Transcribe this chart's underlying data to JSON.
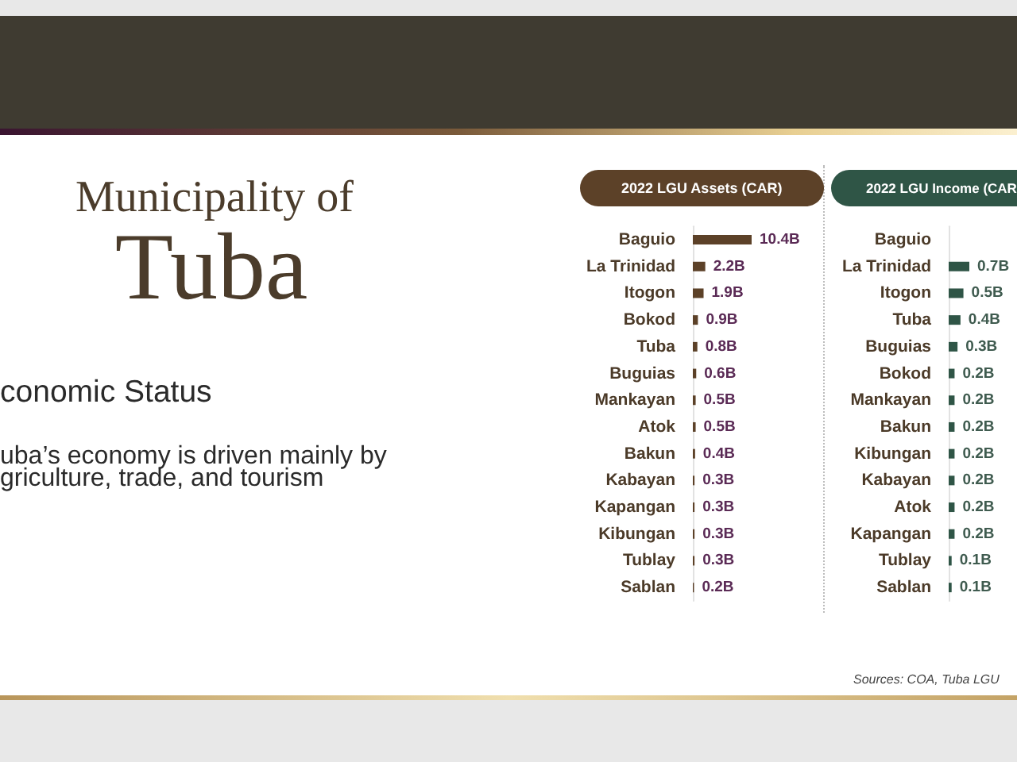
{
  "chart_data": [
    {
      "type": "other",
      "title": "Municipality of",
      "subtitle": "Tuba",
      "annotations": [
        "conomic Status",
        "uba’s economy is driven mainly by griculture, trade, and tourism"
      ]
    },
    {
      "type": "bar",
      "orientation": "horizontal",
      "title": "2022 LGU Assets (CAR)",
      "categories": [
        "Baguio",
        "La Trinidad",
        "Itogon",
        "Bokod",
        "Tuba",
        "Buguias",
        "Mankayan",
        "Atok",
        "Bakun",
        "Kabayan",
        "Kapangan",
        "Kibungan",
        "Tublay",
        "Sablan"
      ],
      "values": [
        10.4,
        2.2,
        1.9,
        0.9,
        0.8,
        0.6,
        0.5,
        0.5,
        0.4,
        0.3,
        0.3,
        0.3,
        0.3,
        0.2
      ],
      "value_labels": [
        "10.4B",
        "2.2B",
        "1.9B",
        "0.9B",
        "0.8B",
        "0.6B",
        "0.5B",
        "0.5B",
        "0.4B",
        "0.3B",
        "0.3B",
        "0.3B",
        "0.3B",
        "0.2B"
      ],
      "color": "#5c4128",
      "tick_labels": "y"
    },
    {
      "type": "bar",
      "orientation": "horizontal",
      "title": "2022 LGU Income (CAR",
      "categories": [
        "Baguio",
        "La Trinidad",
        "Itogon",
        "Tuba",
        "Buguias",
        "Bokod",
        "Mankayan",
        "Bakun",
        "Kibungan",
        "Kabayan",
        "Atok",
        "Kapangan",
        "Tublay",
        "Sablan"
      ],
      "values": [
        null,
        0.7,
        0.5,
        0.4,
        0.3,
        0.2,
        0.2,
        0.2,
        0.2,
        0.2,
        0.2,
        0.2,
        0.1,
        0.1
      ],
      "value_labels": [
        null,
        "0.7B",
        "0.5B",
        "0.4B",
        "0.3B",
        "0.2B",
        "0.2B",
        "0.2B",
        "0.2B",
        "0.2B",
        "0.2B",
        "0.2B",
        "0.1B",
        "0.1B"
      ],
      "color": "#2f5546",
      "tick_labels": "y",
      "annotations": [
        "Sources: COA, Tuba LGU"
      ]
    }
  ]
}
